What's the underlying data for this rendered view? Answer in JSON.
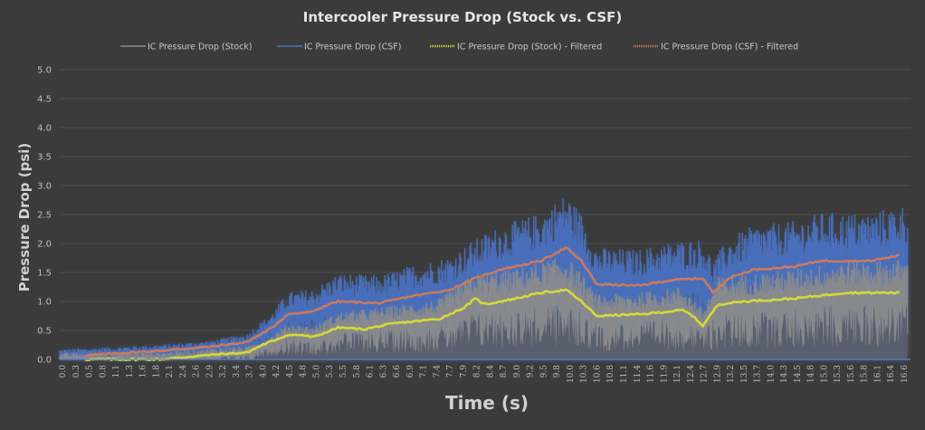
{
  "chart_data": {
    "type": "line",
    "title": "Intercooler Pressure Drop (Stock vs. CSF)",
    "xlabel": "Time (s)",
    "ylabel": "Pressure Drop (psi)",
    "ylim": [
      0,
      5
    ],
    "xlim": [
      0,
      16.8
    ],
    "y_ticks": [
      "0.0",
      "0.5",
      "1.0",
      "1.5",
      "2.0",
      "2.5",
      "3.0",
      "3.5",
      "4.0",
      "4.5",
      "5.0"
    ],
    "x_ticks": [
      "0.0",
      "0.3",
      "0.5",
      "0.8",
      "1.1",
      "1.3",
      "1.6",
      "1.8",
      "2.1",
      "2.4",
      "2.6",
      "2.9",
      "3.2",
      "3.4",
      "3.7",
      "4.0",
      "4.2",
      "4.5",
      "4.8",
      "5.0",
      "5.3",
      "5.5",
      "5.8",
      "6.1",
      "6.3",
      "6.6",
      "6.9",
      "7.1",
      "7.4",
      "7.7",
      "7.9",
      "8.2",
      "8.4",
      "8.7",
      "9.0",
      "9.2",
      "9.5",
      "9.8",
      "10.0",
      "10.3",
      "10.6",
      "10.8",
      "11.1",
      "11.4",
      "11.6",
      "11.9",
      "12.1",
      "12.4",
      "12.7",
      "12.9",
      "13.2",
      "13.5",
      "13.7",
      "14.0",
      "14.3",
      "14.5",
      "14.8",
      "15.0",
      "15.3",
      "15.6",
      "15.8",
      "16.1",
      "16.4",
      "16.6"
    ],
    "grid": true,
    "legend_position": "top",
    "series": [
      {
        "name": "IC Pressure Drop (Stock)",
        "color": "#8c8c8c",
        "style": "noisy",
        "envelope_x": [
          0,
          2,
          3,
          3.7,
          4.2,
          4.5,
          5,
          5.5,
          6.3,
          7.5,
          8.2,
          9,
          10,
          10.3,
          10.6,
          11.5,
          12.3,
          12.7,
          13,
          14.5,
          15.5,
          16.7
        ],
        "envelope_y": [
          0.0,
          0.02,
          0.08,
          0.12,
          0.28,
          0.42,
          0.38,
          0.55,
          0.6,
          0.7,
          1.0,
          1.05,
          1.2,
          1.0,
          0.75,
          0.78,
          0.85,
          0.58,
          0.95,
          1.05,
          1.15,
          1.15
        ]
      },
      {
        "name": "IC Pressure Drop (CSF)",
        "color": "#4a72c4",
        "style": "noisy",
        "envelope_x": [
          0,
          2,
          3,
          3.7,
          4.2,
          4.5,
          5,
          5.5,
          6.3,
          7,
          7.7,
          8.2,
          8.7,
          9.5,
          10,
          10.3,
          10.6,
          11.4,
          12.1,
          12.7,
          12.9,
          13.2,
          13.7,
          14.5,
          15,
          16,
          16.7
        ],
        "envelope_y": [
          0.07,
          0.15,
          0.22,
          0.3,
          0.55,
          0.78,
          0.82,
          1.0,
          0.97,
          1.1,
          1.2,
          1.4,
          1.55,
          1.7,
          1.93,
          1.7,
          1.3,
          1.27,
          1.37,
          1.4,
          1.15,
          1.4,
          1.55,
          1.6,
          1.7,
          1.7,
          1.8
        ]
      },
      {
        "name": "IC Pressure Drop (Stock) - Filtered",
        "color": "#d4d93a",
        "x": [
          0.5,
          2.0,
          3.0,
          3.7,
          4.0,
          4.5,
          4.8,
          5.0,
          5.5,
          6.0,
          6.6,
          7.5,
          8.0,
          8.2,
          8.4,
          9.0,
          9.5,
          10.0,
          10.3,
          10.6,
          11.5,
          12.3,
          12.5,
          12.7,
          13.0,
          13.5,
          14.5,
          15.5,
          16.6
        ],
        "y": [
          0.0,
          0.0,
          0.08,
          0.12,
          0.25,
          0.42,
          0.42,
          0.38,
          0.55,
          0.52,
          0.62,
          0.7,
          0.9,
          1.05,
          0.95,
          1.05,
          1.15,
          1.2,
          1.0,
          0.75,
          0.78,
          0.85,
          0.75,
          0.58,
          0.95,
          1.0,
          1.05,
          1.15,
          1.15
        ]
      },
      {
        "name": "IC Pressure Drop (CSF) - Filtered",
        "color": "#c97a5e",
        "x": [
          0.5,
          2.0,
          3.0,
          3.7,
          4.2,
          4.5,
          5.0,
          5.3,
          5.5,
          6.3,
          7.0,
          7.7,
          8.2,
          8.7,
          9.5,
          10.0,
          10.3,
          10.6,
          11.4,
          12.1,
          12.7,
          12.9,
          13.2,
          13.7,
          14.5,
          15.0,
          16.0,
          16.6
        ],
        "y": [
          0.07,
          0.15,
          0.22,
          0.3,
          0.55,
          0.78,
          0.82,
          0.95,
          1.0,
          0.97,
          1.1,
          1.2,
          1.4,
          1.55,
          1.7,
          1.93,
          1.7,
          1.3,
          1.27,
          1.37,
          1.4,
          1.15,
          1.4,
          1.55,
          1.6,
          1.7,
          1.7,
          1.8
        ]
      }
    ]
  }
}
